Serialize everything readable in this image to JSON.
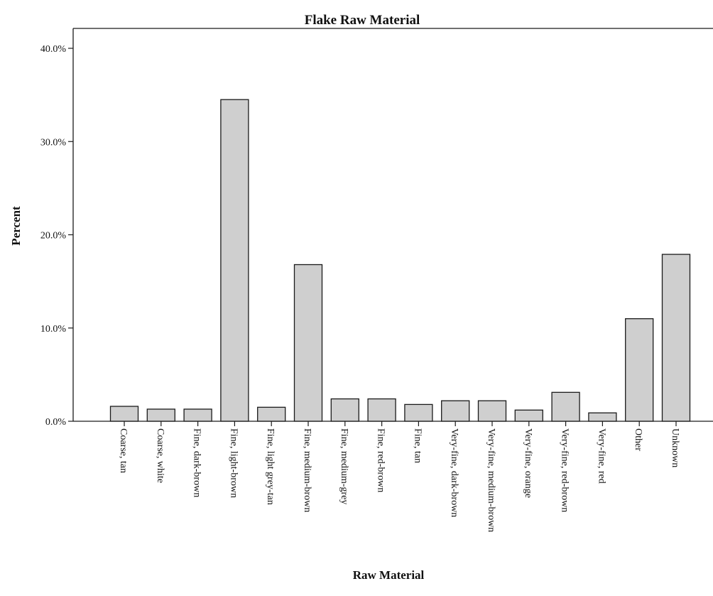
{
  "chart_data": {
    "type": "bar",
    "title": "Flake Raw Material",
    "xlabel": "Raw Material",
    "ylabel": "Percent",
    "ylim": [
      0,
      40
    ],
    "yticks": [
      0,
      10,
      20,
      30,
      40
    ],
    "ytick_labels": [
      "0.0%",
      "10.0%",
      "20.0%",
      "30.0%",
      "40.0%"
    ],
    "grid": false,
    "legend": "none",
    "categories": [
      "Coarse, tan",
      "Coarse, white",
      "Fine, dark-brown",
      "Fine, light-brown",
      "Fine, light grey-tan",
      "Fine, medium-brown",
      "Fine, medium-grey",
      "Fine, red-brown",
      "Fine, tan",
      "Very-fine, dark-brown",
      "Very-fine, medium-brown",
      "Very-fine, orange",
      "Very-fine, red-brown",
      "Very-fine, red",
      "Other",
      "Unknown"
    ],
    "values": [
      1.6,
      1.3,
      1.3,
      34.5,
      1.5,
      16.8,
      2.4,
      2.4,
      1.8,
      2.2,
      2.2,
      1.2,
      3.1,
      0.9,
      11.0,
      17.9
    ],
    "bar_color": "#cfcfcf"
  }
}
